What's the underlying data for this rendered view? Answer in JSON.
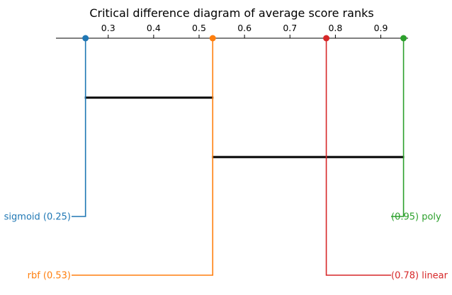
{
  "chart_data": {
    "type": "critical-difference",
    "title": "Critical difference diagram of average score ranks",
    "x_ticks": [
      0.3,
      0.4,
      0.5,
      0.6,
      0.7,
      0.8,
      0.9
    ],
    "x_tick_labels": [
      "0.3",
      "0.4",
      "0.5",
      "0.6",
      "0.7",
      "0.8",
      "0.9"
    ],
    "xlim": [
      0.185,
      0.96
    ],
    "methods": [
      {
        "name": "sigmoid",
        "value": 0.25,
        "label": "sigmoid (0.25)",
        "side": "left",
        "color": "#1f77b4"
      },
      {
        "name": "rbf",
        "value": 0.53,
        "label": "rbf (0.53)",
        "side": "left",
        "color": "#ff7f0e"
      },
      {
        "name": "linear",
        "value": 0.78,
        "label": "(0.78) linear",
        "side": "right",
        "color": "#d62728"
      },
      {
        "name": "poly",
        "value": 0.95,
        "label": "(0.95) poly",
        "side": "right",
        "color": "#2ca02c"
      }
    ],
    "cliques": [
      {
        "from": 0.25,
        "to": 0.53
      },
      {
        "from": 0.53,
        "to": 0.95
      }
    ]
  }
}
